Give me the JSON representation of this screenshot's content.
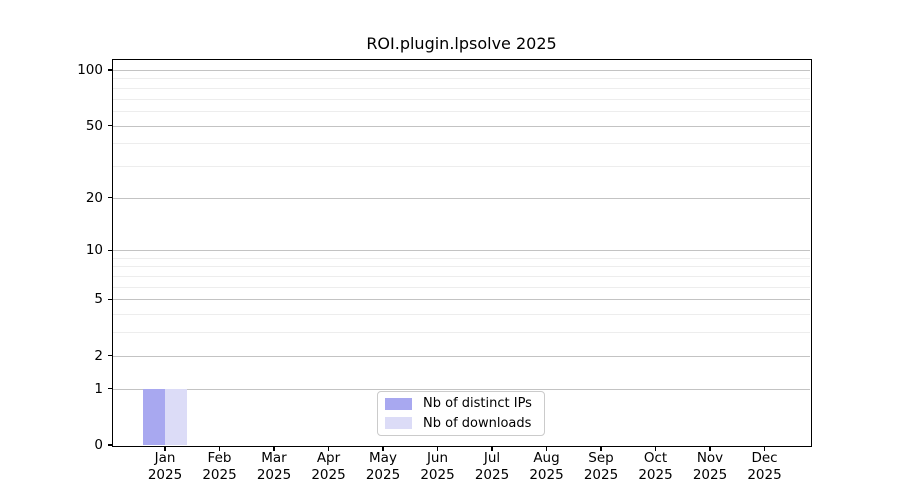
{
  "chart_data": {
    "type": "bar",
    "title": "ROI.plugin.lpsolve 2025",
    "categories": [
      "Jan",
      "Feb",
      "Mar",
      "Apr",
      "May",
      "Jun",
      "Jul",
      "Aug",
      "Sep",
      "Oct",
      "Nov",
      "Dec"
    ],
    "x_tick_year": "2025",
    "series": [
      {
        "name": "Nb of distinct IPs",
        "color": "#a8a8f0",
        "values": [
          1,
          0,
          0,
          0,
          0,
          0,
          0,
          0,
          0,
          0,
          0,
          0
        ]
      },
      {
        "name": "Nb of downloads",
        "color": "#dcdcf7",
        "values": [
          1,
          0,
          0,
          0,
          0,
          0,
          0,
          0,
          0,
          0,
          0,
          0
        ]
      }
    ],
    "y_scale": "log1p",
    "y_major_ticks": [
      0,
      1,
      2,
      5,
      10,
      20,
      50,
      100
    ],
    "y_minor_gridlines": [
      3,
      4,
      6,
      7,
      8,
      9,
      30,
      40,
      60,
      70,
      80,
      90
    ],
    "ylim": [
      0,
      113
    ],
    "xlabel": "",
    "ylabel": "",
    "grid": true,
    "legend_position": "bottom-center"
  },
  "colors": {
    "bar_distinct_ips": "#a8a8f0",
    "bar_downloads": "#dcdcf7",
    "grid_major": "#c3c3c3",
    "grid_minor": "#ededed",
    "spine": "#000000",
    "background": "#ffffff"
  }
}
